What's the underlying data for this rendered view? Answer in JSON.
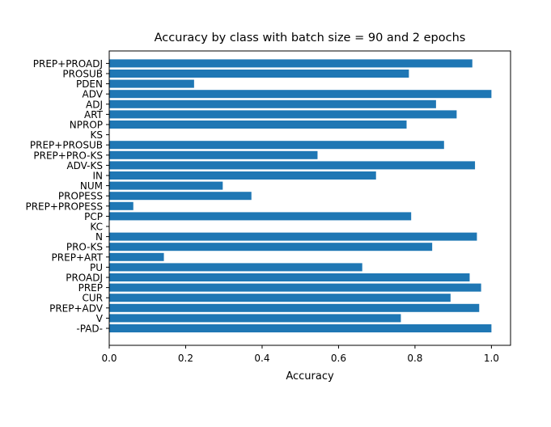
{
  "chart_data": {
    "type": "bar",
    "orientation": "horizontal",
    "title": "Accuracy by class with batch size = 90 and 2 epochs",
    "xlabel": "Accuracy",
    "ylabel": "",
    "xlim": [
      0,
      1.05
    ],
    "xticks": [
      "0.0",
      "0.2",
      "0.4",
      "0.6",
      "0.8",
      "1.0"
    ],
    "grid": false,
    "bar_color": "#1f77b4",
    "categories": [
      "-PAD-",
      "V",
      "PREP+ADV",
      "CUR",
      "PREP",
      "PROADJ",
      "PU",
      "PREP+ART",
      "PRO-KS",
      "N",
      "KC",
      "PCP",
      "PREP+PROPESS",
      "PROPESS",
      "NUM",
      "IN",
      "ADV-KS",
      "PREP+PRO-KS",
      "PREP+PROSUB",
      "KS",
      "NPROP",
      "ART",
      "ADJ",
      "ADV",
      "PDEN",
      "PROSUB",
      "PREP+PROADJ"
    ],
    "values": [
      1.0,
      0.763,
      0.968,
      0.893,
      0.973,
      0.943,
      0.662,
      0.143,
      0.845,
      0.962,
      0.0,
      0.79,
      0.063,
      0.372,
      0.297,
      0.698,
      0.957,
      0.545,
      0.876,
      0.0,
      0.778,
      0.909,
      0.855,
      1.0,
      0.222,
      0.784,
      0.95
    ]
  }
}
